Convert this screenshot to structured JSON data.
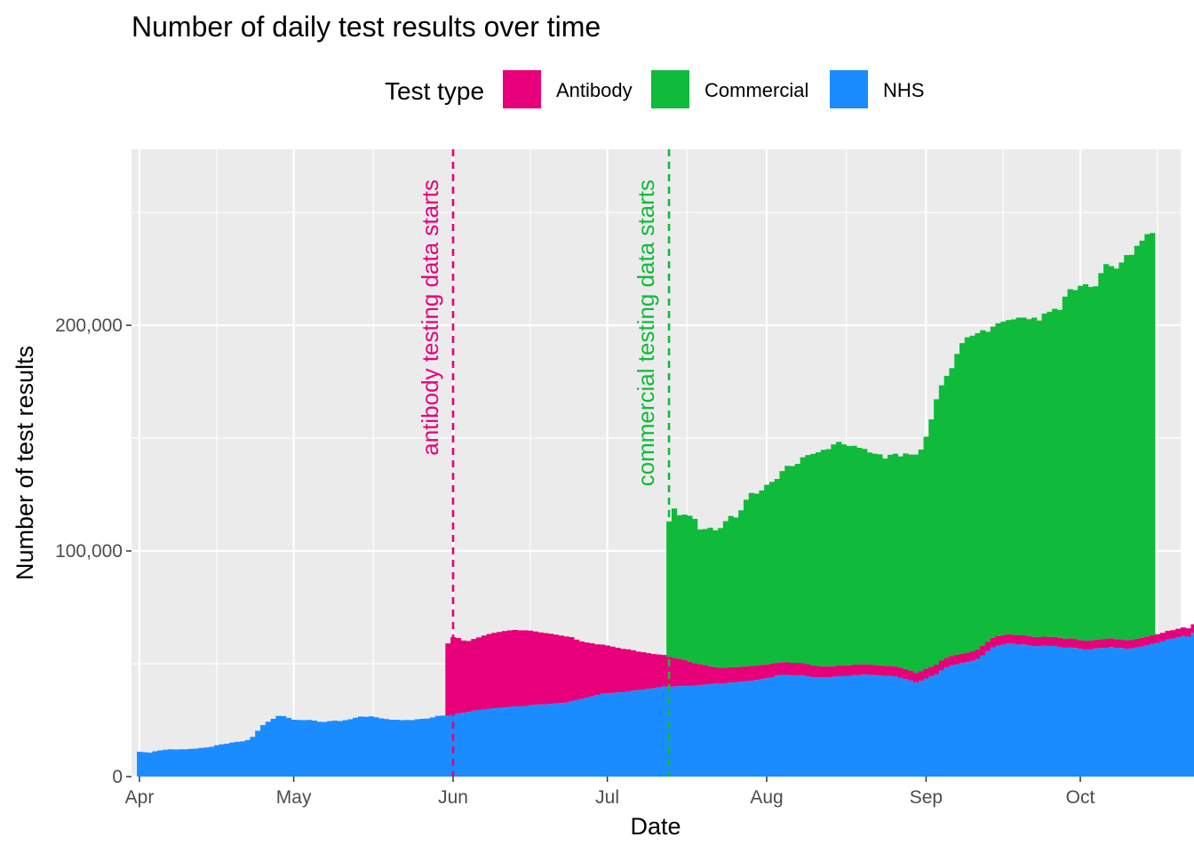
{
  "chart_data": {
    "type": "area",
    "title": "Number of daily test results over time",
    "xlabel": "Date",
    "ylabel": "Number of test results",
    "legend": {
      "title": "Test type",
      "position": "top",
      "entries": [
        {
          "label": "Antibody",
          "color": "#E7007A"
        },
        {
          "label": "Commercial",
          "color": "#10BA3A"
        },
        {
          "label": "NHS",
          "color": "#1A8CFF"
        }
      ]
    },
    "x_ticks": [
      "Apr",
      "May",
      "Jun",
      "Jul",
      "Aug",
      "Sep",
      "Oct"
    ],
    "x_tick_days": [
      0,
      30,
      61,
      91,
      122,
      153,
      183
    ],
    "y_ticks": [
      0,
      100000,
      200000
    ],
    "y_tick_labels": [
      "0",
      "100,000",
      "200,000"
    ],
    "ylim": [
      0,
      278000
    ],
    "xlim_days": [
      -1,
      204
    ],
    "grid": true,
    "panel_background": "#EBEBEB",
    "dates": {
      "start": "2020-04-01",
      "end": "2020-10-23"
    },
    "annotations": [
      {
        "text": "antibody testing data starts",
        "day": 61,
        "color": "#E7007A"
      },
      {
        "text": "commercial testing data starts",
        "day": 103,
        "color": "#10BA3A"
      }
    ],
    "stack_order": [
      "NHS",
      "Antibody",
      "Commercial"
    ],
    "series": [
      {
        "name": "NHS",
        "color": "#1A8CFF",
        "values": [
          11000,
          10800,
          10600,
          11200,
          11600,
          11900,
          12100,
          12000,
          12100,
          12100,
          12300,
          12400,
          12700,
          12900,
          13200,
          13900,
          14300,
          14600,
          15100,
          15400,
          15600,
          16200,
          17600,
          20300,
          22800,
          24300,
          25600,
          26900,
          26800,
          26000,
          25200,
          25100,
          25000,
          25100,
          24800,
          24300,
          24200,
          24600,
          24800,
          24600,
          25000,
          25400,
          26100,
          26600,
          26500,
          26700,
          26300,
          25800,
          25500,
          25200,
          25200,
          25000,
          25100,
          25000,
          25400,
          25600,
          25700,
          26200,
          26900,
          27000,
          27000,
          27600,
          28000,
          28300,
          28700,
          29200,
          29500,
          29700,
          30100,
          30300,
          30500,
          30700,
          30900,
          31100,
          31100,
          31300,
          31600,
          31800,
          32000,
          32000,
          32200,
          32500,
          32600,
          32800,
          33500,
          33900,
          34400,
          35000,
          35600,
          36100,
          36800,
          37000,
          37100,
          37300,
          37400,
          37800,
          38100,
          38300,
          38600,
          38900,
          39100,
          39600,
          40000,
          39800,
          39900,
          40100,
          40200,
          40200,
          40300,
          40600,
          40800,
          41000,
          41200,
          41100,
          41400,
          41700,
          41800,
          42100,
          42300,
          42500,
          42800,
          43200,
          43600,
          44100,
          44800,
          45100,
          45100,
          44900,
          44900,
          44800,
          44500,
          44000,
          44000,
          44100,
          44100,
          44200,
          44500,
          44500,
          44700,
          45000,
          45000,
          45200,
          45100,
          45000,
          44900,
          44700,
          44700,
          44400,
          43900,
          43300,
          42600,
          41700,
          42400,
          43500,
          44400,
          45300,
          47100,
          48400,
          49300,
          49800,
          50300,
          50700,
          51300,
          52200,
          53700,
          55600,
          57300,
          58100,
          58500,
          59000,
          58800,
          58500,
          58600,
          58200,
          57900,
          57800,
          58000,
          57900,
          57900,
          57500,
          57100,
          57300,
          57000,
          56600,
          56300,
          56400,
          56800,
          57000,
          57100,
          57400,
          57100,
          57000,
          56700,
          56800,
          57300,
          57700,
          58300,
          58800,
          59300,
          59900,
          60800,
          61200,
          61800,
          62400,
          62000,
          63800,
          64500
        ]
      },
      {
        "name": "Antibody",
        "color": "#E7007A",
        "values": [
          0,
          0,
          0,
          0,
          0,
          0,
          0,
          0,
          0,
          0,
          0,
          0,
          0,
          0,
          0,
          0,
          0,
          0,
          0,
          0,
          0,
          0,
          0,
          0,
          0,
          0,
          0,
          0,
          0,
          0,
          0,
          0,
          0,
          0,
          0,
          0,
          0,
          0,
          0,
          0,
          0,
          0,
          0,
          0,
          0,
          0,
          0,
          0,
          0,
          0,
          0,
          0,
          0,
          0,
          0,
          0,
          0,
          0,
          0,
          0,
          32000,
          34200,
          33400,
          32000,
          31400,
          31800,
          32200,
          32800,
          33100,
          33400,
          33600,
          33800,
          33900,
          33900,
          33700,
          33500,
          33100,
          32500,
          31900,
          31600,
          31100,
          30400,
          29900,
          29300,
          28300,
          26800,
          25500,
          24400,
          23500,
          22500,
          21700,
          21100,
          20500,
          19800,
          19200,
          18600,
          17900,
          17100,
          16500,
          15800,
          15200,
          14500,
          13900,
          13300,
          12700,
          12100,
          11400,
          10700,
          10000,
          9300,
          8600,
          7900,
          7300,
          7100,
          6900,
          6800,
          6700,
          6600,
          6600,
          6500,
          6400,
          6300,
          6100,
          5900,
          5700,
          5600,
          5500,
          5500,
          5500,
          5400,
          5300,
          5200,
          5000,
          4800,
          4700,
          4700,
          4700,
          4700,
          4600,
          4600,
          4600,
          4500,
          4500,
          4500,
          4400,
          4400,
          4400,
          4400,
          4400,
          4400,
          4400,
          4300,
          4300,
          4300,
          4300,
          4300,
          4300,
          4200,
          4200,
          4200,
          4200,
          4200,
          4200,
          4200,
          4200,
          4200,
          4200,
          4200,
          4100,
          4100,
          4100,
          4100,
          4100,
          4100,
          4000,
          4000,
          4000,
          4000,
          4000,
          4000,
          4000,
          4000,
          4000,
          3900,
          3900,
          3900,
          3900,
          3900,
          3900,
          3900,
          3800,
          3800,
          3800,
          3800,
          3800,
          3800,
          3800,
          3800,
          3800,
          3800,
          3800,
          3700,
          3700,
          3700,
          3700,
          3700,
          3700,
          3700,
          3700,
          3700,
          3700,
          3700,
          3700,
          3600,
          4800
        ]
      },
      {
        "name": "Commercial",
        "color": "#10BA3A",
        "values": [
          0,
          0,
          0,
          0,
          0,
          0,
          0,
          0,
          0,
          0,
          0,
          0,
          0,
          0,
          0,
          0,
          0,
          0,
          0,
          0,
          0,
          0,
          0,
          0,
          0,
          0,
          0,
          0,
          0,
          0,
          0,
          0,
          0,
          0,
          0,
          0,
          0,
          0,
          0,
          0,
          0,
          0,
          0,
          0,
          0,
          0,
          0,
          0,
          0,
          0,
          0,
          0,
          0,
          0,
          0,
          0,
          0,
          0,
          0,
          0,
          0,
          0,
          0,
          0,
          0,
          0,
          0,
          0,
          0,
          0,
          0,
          0,
          0,
          0,
          0,
          0,
          0,
          0,
          0,
          0,
          0,
          0,
          0,
          0,
          0,
          0,
          0,
          0,
          0,
          0,
          0,
          0,
          0,
          0,
          0,
          0,
          0,
          0,
          0,
          0,
          0,
          0,
          0,
          60000,
          66200,
          63600,
          64500,
          64700,
          63900,
          59600,
          60300,
          61400,
          60600,
          61900,
          64900,
          67000,
          66300,
          69300,
          73800,
          76700,
          76200,
          77300,
          79600,
          80600,
          81400,
          84700,
          87100,
          87200,
          88200,
          91300,
          92700,
          93800,
          94700,
          95900,
          96300,
          98300,
          99100,
          98000,
          97200,
          97000,
          96100,
          95500,
          94000,
          93600,
          93500,
          91800,
          93500,
          94300,
          93600,
          95500,
          95700,
          96700,
          98200,
          102800,
          109600,
          117600,
          122000,
          125000,
          127500,
          133300,
          137600,
          139800,
          139900,
          140100,
          139900,
          137300,
          137900,
          138600,
          139000,
          139200,
          139700,
          140800,
          140700,
          140400,
          141500,
          140300,
          143200,
          144100,
          145400,
          145300,
          151600,
          154700,
          154600,
          157000,
          158000,
          156700,
          156600,
          162200,
          166100,
          164900,
          164200,
          167000,
          170600,
          170600,
          174100,
          176000,
          178300,
          178300
        ]
      }
    ]
  }
}
